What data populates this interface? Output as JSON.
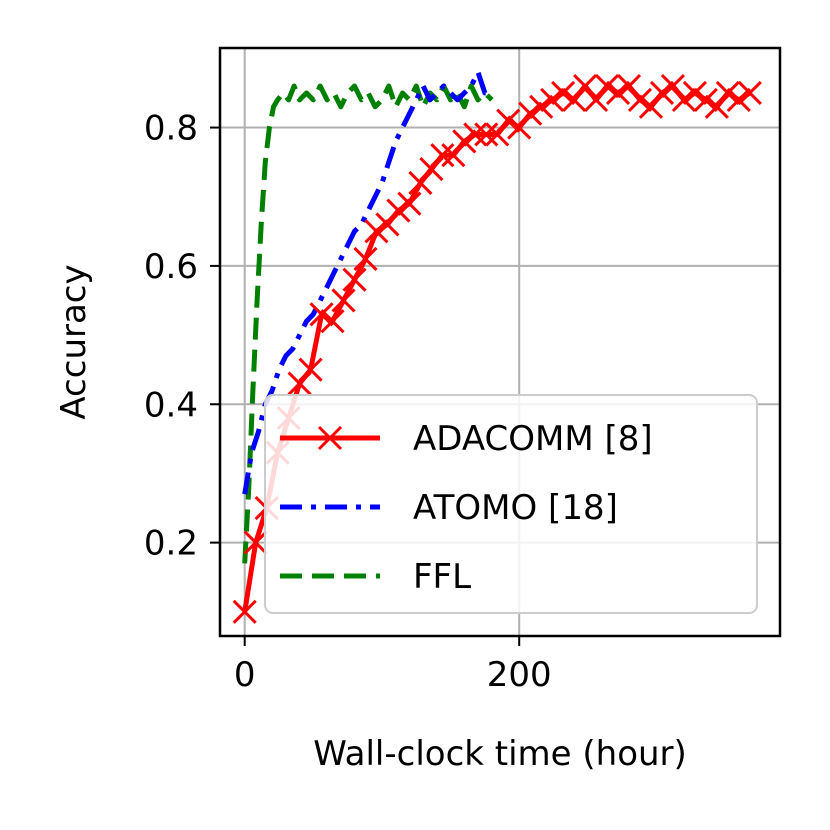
{
  "chart_data": {
    "type": "line",
    "title": "",
    "xlabel": "Wall-clock time (hour)",
    "ylabel": "Accuracy",
    "xlim": [
      -18,
      390
    ],
    "ylim": [
      0.065,
      0.915
    ],
    "xticks": [
      0,
      200
    ],
    "xtick_labels": [
      "0",
      "200"
    ],
    "yticks": [
      0.2,
      0.4,
      0.6,
      0.8
    ],
    "ytick_labels": [
      "0.2",
      "0.4",
      "0.6",
      "0.8"
    ],
    "grid": true,
    "legend_position": "lower right",
    "series": [
      {
        "name": "ADACOMM [8]",
        "color": "#ff0000",
        "style": "solid",
        "marker": "x",
        "x": [
          0,
          8,
          16,
          24,
          32,
          40,
          48,
          56,
          64,
          72,
          80,
          88,
          96,
          104,
          112,
          120,
          128,
          136,
          144,
          152,
          160,
          168,
          176,
          184,
          192,
          200,
          208,
          216,
          224,
          232,
          240,
          248,
          256,
          264,
          272,
          280,
          288,
          296,
          304,
          312,
          320,
          328,
          336,
          344,
          352,
          360,
          368
        ],
        "y": [
          0.1,
          0.2,
          0.25,
          0.33,
          0.38,
          0.43,
          0.45,
          0.53,
          0.52,
          0.55,
          0.58,
          0.61,
          0.65,
          0.66,
          0.68,
          0.69,
          0.72,
          0.74,
          0.76,
          0.76,
          0.78,
          0.79,
          0.79,
          0.79,
          0.81,
          0.8,
          0.82,
          0.83,
          0.84,
          0.85,
          0.84,
          0.86,
          0.84,
          0.86,
          0.85,
          0.86,
          0.84,
          0.83,
          0.85,
          0.86,
          0.84,
          0.85,
          0.84,
          0.83,
          0.85,
          0.84,
          0.85
        ]
      },
      {
        "name": "ATOMO [18]",
        "color": "#0000ff",
        "style": "dashdot",
        "x": [
          0,
          5,
          10,
          15,
          20,
          25,
          30,
          35,
          40,
          45,
          50,
          55,
          60,
          65,
          70,
          75,
          80,
          85,
          90,
          95,
          100,
          105,
          110,
          115,
          120,
          125,
          130,
          135,
          140,
          145,
          150,
          155,
          160,
          165,
          170,
          175,
          180
        ],
        "y": [
          0.27,
          0.33,
          0.36,
          0.4,
          0.42,
          0.45,
          0.47,
          0.48,
          0.5,
          0.52,
          0.53,
          0.55,
          0.57,
          0.59,
          0.61,
          0.63,
          0.65,
          0.66,
          0.68,
          0.7,
          0.72,
          0.75,
          0.78,
          0.8,
          0.82,
          0.84,
          0.86,
          0.84,
          0.85,
          0.86,
          0.85,
          0.84,
          0.85,
          0.86,
          0.88,
          0.85,
          0.85
        ]
      },
      {
        "name": "FFL",
        "color": "#008000",
        "style": "dashed",
        "x": [
          0,
          3,
          6,
          9,
          12,
          15,
          18,
          21,
          24,
          28,
          32,
          36,
          40,
          45,
          50,
          55,
          60,
          65,
          70,
          75,
          80,
          85,
          90,
          95,
          100,
          105,
          110,
          115,
          120,
          125,
          130,
          135,
          140,
          145,
          150,
          155,
          160,
          165,
          170,
          175,
          180
        ],
        "y": [
          0.17,
          0.28,
          0.42,
          0.55,
          0.66,
          0.75,
          0.8,
          0.83,
          0.84,
          0.85,
          0.84,
          0.86,
          0.84,
          0.85,
          0.84,
          0.86,
          0.84,
          0.85,
          0.83,
          0.85,
          0.86,
          0.84,
          0.85,
          0.83,
          0.84,
          0.86,
          0.83,
          0.85,
          0.84,
          0.86,
          0.83,
          0.85,
          0.84,
          0.86,
          0.84,
          0.85,
          0.83,
          0.86,
          0.84,
          0.85,
          0.84
        ]
      }
    ]
  }
}
